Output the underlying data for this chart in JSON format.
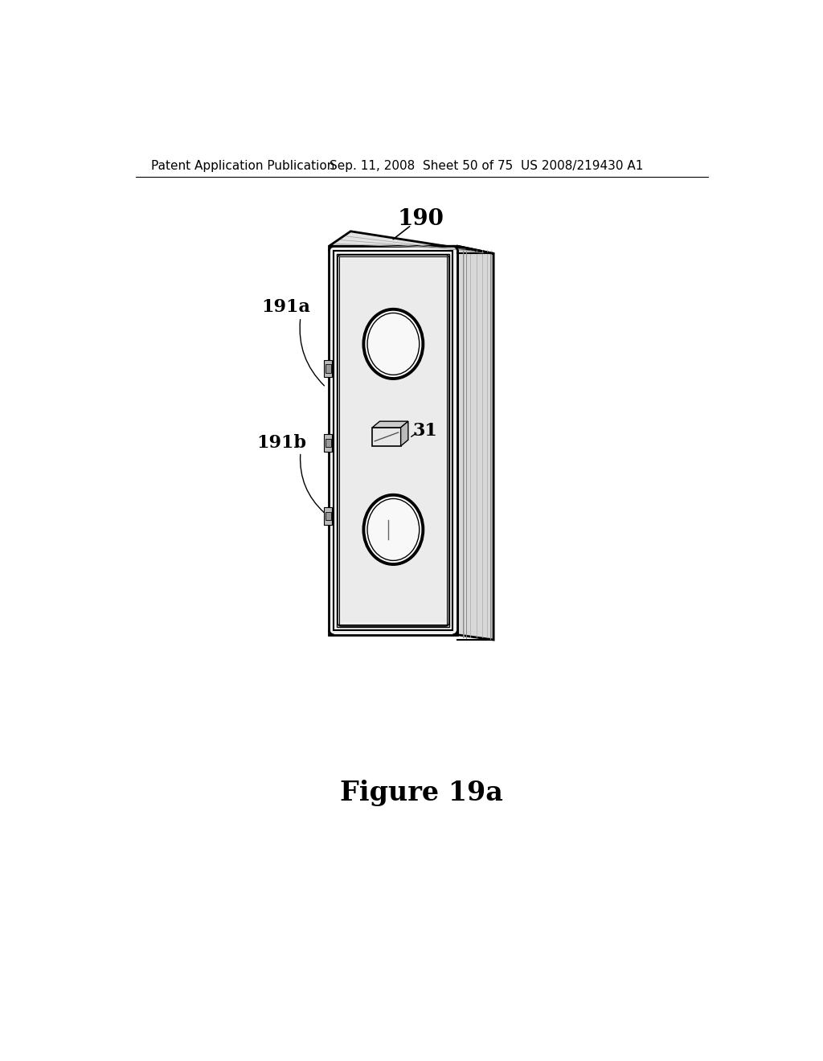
{
  "bg_color": "#ffffff",
  "header_left": "Patent Application Publication",
  "header_mid": "Sep. 11, 2008  Sheet 50 of 75",
  "header_right": "US 2008/219430 A1",
  "figure_label": "Figure 19a",
  "label_190": "190",
  "label_191a": "191a",
  "label_191b": "191b",
  "label_31": "31",
  "header_fontsize": 11,
  "label_fontsize": 16,
  "figure_fontsize": 24,
  "line_color": "#000000",
  "bg_panel_color": "#f2f2f2",
  "side_color": "#d8d8d8",
  "top_color": "#e4e4e4",
  "inner_color": "#ebebeb"
}
